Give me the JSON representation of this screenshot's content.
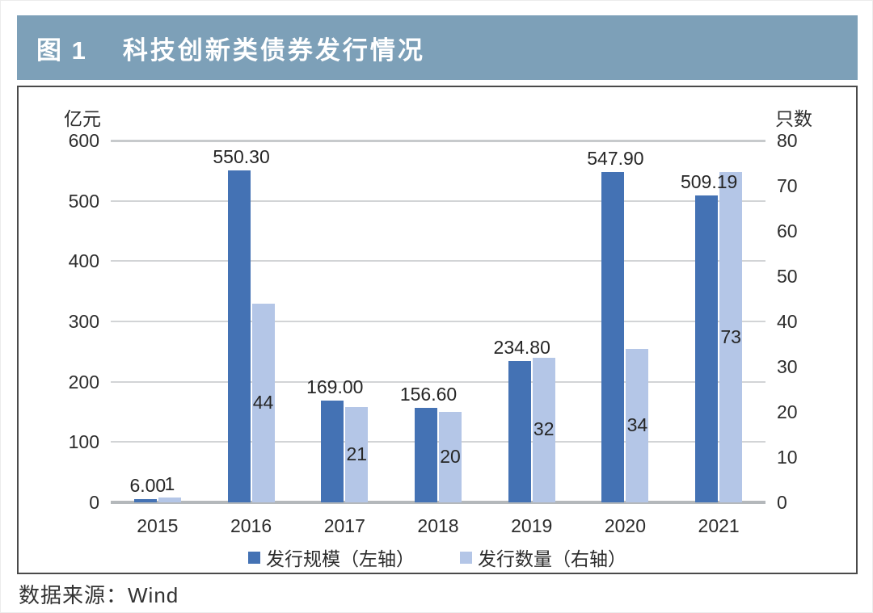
{
  "figure_header": {
    "label": "图 1",
    "title": "科技创新类债券发行情况",
    "bg_color": "#7DA0B8",
    "text_color": "#FFFFFF"
  },
  "source_note": {
    "text": "数据来源：Wind"
  },
  "chart_data": {
    "type": "bar",
    "title": "科技创新类债券发行情况",
    "categories": [
      "2015",
      "2016",
      "2017",
      "2018",
      "2019",
      "2020",
      "2021"
    ],
    "series": [
      {
        "name": "发行规模（左轴）",
        "axis": "left",
        "color": "#4472B4",
        "values": [
          6.0,
          550.3,
          169.0,
          156.6,
          234.8,
          547.9,
          509.19
        ],
        "labels": [
          "6.00",
          "550.30",
          "169.00",
          "156.60",
          "234.80",
          "547.90",
          "509.19"
        ]
      },
      {
        "name": "发行数量（右轴）",
        "axis": "right",
        "color": "#B4C6E7",
        "values": [
          1,
          44,
          21,
          20,
          32,
          34,
          73
        ],
        "labels": [
          "1",
          "44",
          "21",
          "20",
          "32",
          "34",
          "73"
        ]
      }
    ],
    "left_axis": {
      "unit": "亿元",
      "min": 0,
      "max": 600,
      "step": 100,
      "ticks": [
        "600",
        "500",
        "400",
        "300",
        "200",
        "100",
        "0"
      ]
    },
    "right_axis": {
      "unit": "只数",
      "min": 0,
      "max": 80,
      "step": 10,
      "ticks": [
        "80",
        "70",
        "60",
        "50",
        "40",
        "30",
        "20",
        "10",
        "0"
      ]
    },
    "grid": true,
    "legend_position": "bottom"
  }
}
